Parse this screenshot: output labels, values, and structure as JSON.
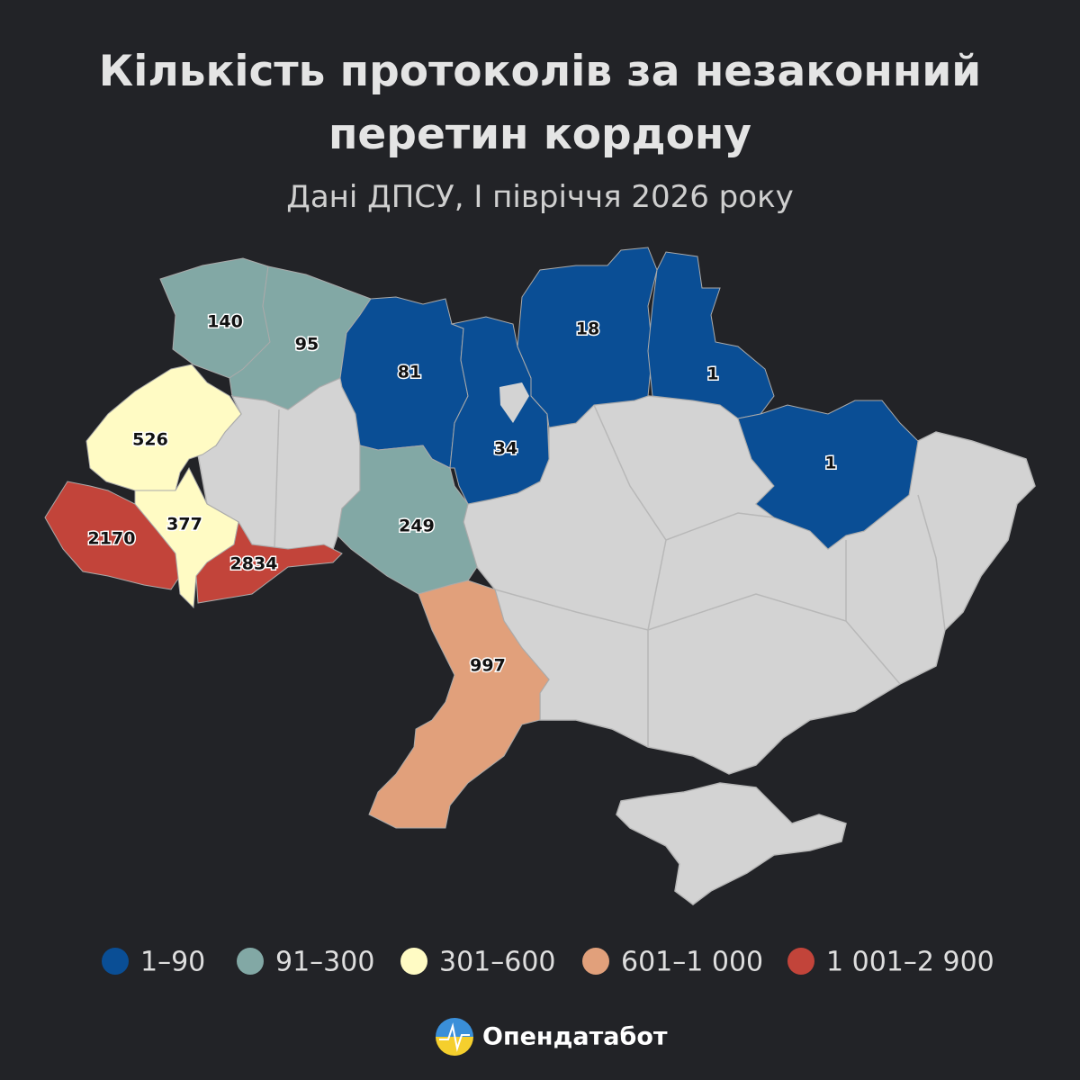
{
  "title_lines": [
    "Кількість протоколів за незаконний",
    "перетин кордону"
  ],
  "subtitle": "Дані ДПСУ, І півріччя 2026 року",
  "map": {
    "values": [
      140,
      95,
      81,
      34,
      18,
      1,
      1,
      526,
      2170,
      377,
      2834,
      249,
      997
    ],
    "legend": [
      {
        "label": "1–90",
        "color": "#0a4e95",
        "min": 1,
        "max": 90
      },
      {
        "label": "91–300",
        "color": "#82a8a5",
        "min": 91,
        "max": 300
      },
      {
        "label": "301–600",
        "color": "#fffbc4",
        "min": 301,
        "max": 600
      },
      {
        "label": "601–1 000",
        "color": "#e1a07b",
        "min": 601,
        "max": 1000
      },
      {
        "label": "1 001–2 900",
        "color": "#c2443a",
        "min": 1001,
        "max": 2900
      }
    ]
  },
  "brand": "Опендатабот"
}
